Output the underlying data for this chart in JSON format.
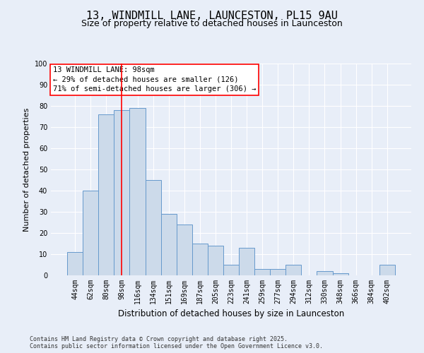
{
  "title1": "13, WINDMILL LANE, LAUNCESTON, PL15 9AU",
  "title2": "Size of property relative to detached houses in Launceston",
  "xlabel": "Distribution of detached houses by size in Launceston",
  "ylabel": "Number of detached properties",
  "categories": [
    "44sqm",
    "62sqm",
    "80sqm",
    "98sqm",
    "116sqm",
    "134sqm",
    "151sqm",
    "169sqm",
    "187sqm",
    "205sqm",
    "223sqm",
    "241sqm",
    "259sqm",
    "277sqm",
    "294sqm",
    "312sqm",
    "330sqm",
    "348sqm",
    "366sqm",
    "384sqm",
    "402sqm"
  ],
  "values": [
    11,
    40,
    76,
    78,
    79,
    45,
    29,
    24,
    15,
    14,
    5,
    13,
    3,
    3,
    5,
    0,
    2,
    1,
    0,
    0,
    5
  ],
  "bar_color": "#ccdaea",
  "bar_edge_color": "#6699cc",
  "red_line_index": 3,
  "annotation_text": "13 WINDMILL LANE: 98sqm\n← 29% of detached houses are smaller (126)\n71% of semi-detached houses are larger (306) →",
  "annotation_box_color": "white",
  "annotation_box_edge_color": "red",
  "ylim": [
    0,
    100
  ],
  "yticks": [
    0,
    10,
    20,
    30,
    40,
    50,
    60,
    70,
    80,
    90,
    100
  ],
  "bg_color": "#e8eef8",
  "plot_bg_color": "#e8eef8",
  "grid_color": "white",
  "footer": "Contains HM Land Registry data © Crown copyright and database right 2025.\nContains public sector information licensed under the Open Government Licence v3.0.",
  "title1_fontsize": 11,
  "title2_fontsize": 9,
  "xlabel_fontsize": 8.5,
  "ylabel_fontsize": 8,
  "tick_fontsize": 7,
  "annotation_fontsize": 7.5,
  "footer_fontsize": 6
}
